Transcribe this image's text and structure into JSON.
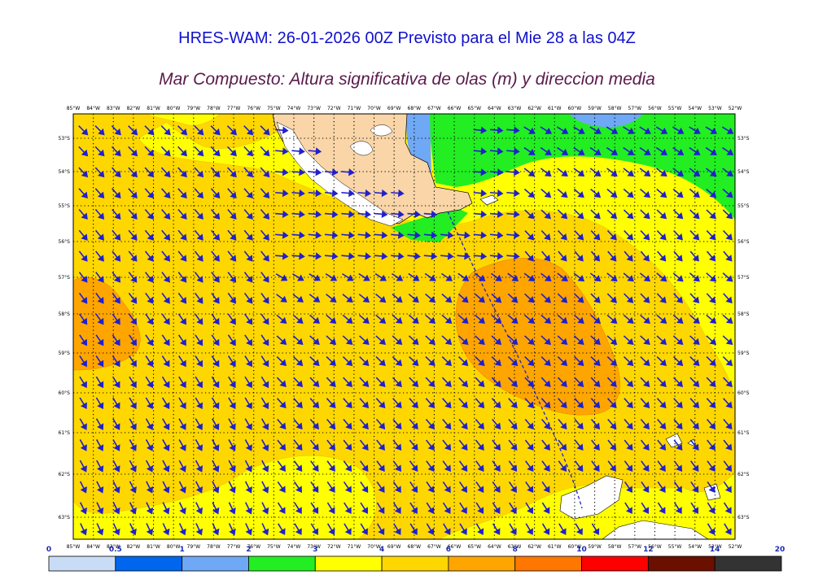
{
  "header": {
    "title": "HRES-WAM: 26-01-2026 00Z Previsto para el Mie 28 a las 04Z",
    "subtitle": "Mar Compuesto: Altura significativa de olas (m) y direccion media"
  },
  "map": {
    "lon_labels": [
      "85°W",
      "84°W",
      "83°W",
      "82°W",
      "81°W",
      "80°W",
      "79°W",
      "78°W",
      "77°W",
      "76°W",
      "75°W",
      "74°W",
      "73°W",
      "72°W",
      "71°W",
      "70°W",
      "69°W",
      "68°W",
      "67°W",
      "66°W",
      "65°W",
      "64°W",
      "63°W",
      "62°W",
      "61°W",
      "60°W",
      "59°W",
      "58°W",
      "57°W",
      "56°W",
      "55°W",
      "54°W",
      "53°W",
      "52°W"
    ],
    "lat_labels": [
      "53°S",
      "54°S",
      "55°S",
      "56°S",
      "57°S",
      "58°S",
      "59°S",
      "60°S",
      "61°S",
      "62°S",
      "63°S"
    ],
    "colors": {
      "land": "#f9d5a7",
      "arrow": "#2020cc",
      "grid": "#000000"
    }
  },
  "colorbar": {
    "labels": [
      "0",
      "0.5",
      "1",
      "2",
      "3",
      "4",
      "6",
      "8",
      "10",
      "12",
      "14",
      "20"
    ],
    "colors": [
      "#c8ddf5",
      "#0066ee",
      "#6fa8f5",
      "#22ee22",
      "#ffff00",
      "#ffd700",
      "#ffa500",
      "#ff7700",
      "#ff0000",
      "#6b0f00",
      "#333333"
    ]
  }
}
